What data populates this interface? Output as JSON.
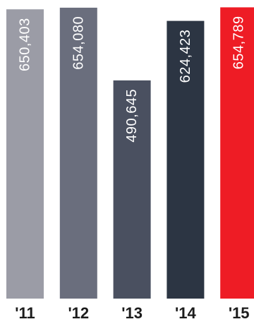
{
  "chart_data": {
    "type": "bar",
    "categories": [
      "'11",
      "'12",
      "'13",
      "'14",
      "'15"
    ],
    "values": [
      650403,
      654080,
      490645,
      624423,
      654789
    ],
    "value_labels": [
      "650,403",
      "654,080",
      "490,645",
      "624,423",
      "654,789"
    ],
    "colors": [
      "#9b9ca6",
      "#6a6e7d",
      "#4a5060",
      "#2c3543",
      "#ee1c25"
    ],
    "tick_color": "#1c1c1c",
    "value_label_color": "#ffffff",
    "value_label_orientation": "vertical",
    "grid": false,
    "legend": "none",
    "ylim": [
      0,
      665000
    ]
  }
}
